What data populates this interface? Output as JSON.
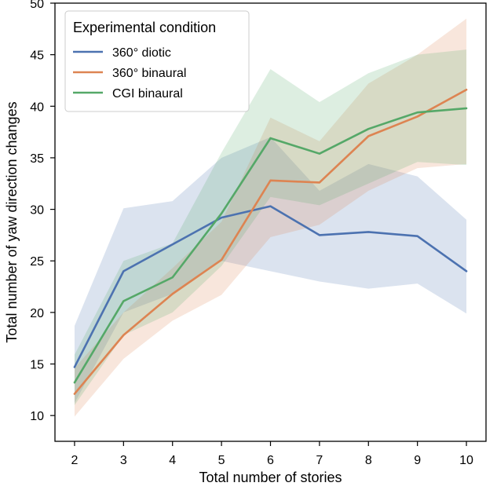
{
  "chart_data": {
    "type": "line",
    "title": "",
    "xlabel": "Total number of stories",
    "ylabel": "Total number of yaw direction changes",
    "xlim": [
      1.6,
      10.4
    ],
    "ylim": [
      7.5,
      50
    ],
    "x": [
      2,
      3,
      4,
      5,
      6,
      7,
      8,
      9,
      10
    ],
    "xticks": [
      2,
      3,
      4,
      5,
      6,
      7,
      8,
      9,
      10
    ],
    "yticks": [
      10,
      15,
      20,
      25,
      30,
      35,
      40,
      45,
      50
    ],
    "grid": false,
    "legend": {
      "title": "Experimental condition",
      "position": "top-left"
    },
    "series": [
      {
        "name": "360° diotic",
        "color": "#4c72b0",
        "values": [
          14.7,
          24.0,
          26.6,
          29.2,
          30.3,
          27.5,
          27.8,
          27.4,
          24.0
        ],
        "ci_low": [
          11.2,
          20.0,
          21.8,
          25.0,
          24.0,
          23.0,
          22.3,
          22.8,
          19.9
        ],
        "ci_high": [
          18.7,
          30.1,
          30.8,
          35.0,
          37.0,
          31.8,
          34.4,
          33.2,
          29.0
        ]
      },
      {
        "name": "360° binaural",
        "color": "#dd8452",
        "values": [
          12.1,
          17.8,
          21.8,
          25.1,
          32.8,
          32.6,
          37.1,
          39.0,
          41.6
        ],
        "ci_low": [
          9.9,
          15.5,
          19.2,
          21.7,
          27.3,
          28.5,
          31.8,
          34.0,
          34.4
        ],
        "ci_high": [
          14.6,
          20.0,
          24.3,
          28.8,
          38.9,
          36.6,
          42.2,
          45.0,
          48.5
        ]
      },
      {
        "name": "CGI binaural",
        "color": "#55a868",
        "values": [
          13.2,
          21.1,
          23.4,
          29.6,
          36.9,
          35.4,
          37.8,
          39.4,
          39.8
        ],
        "ci_low": [
          11.0,
          17.8,
          20.0,
          24.5,
          31.2,
          30.4,
          32.5,
          34.6,
          34.3
        ],
        "ci_high": [
          15.9,
          25.0,
          26.7,
          35.5,
          43.6,
          40.4,
          43.2,
          45.0,
          45.5
        ]
      }
    ]
  }
}
